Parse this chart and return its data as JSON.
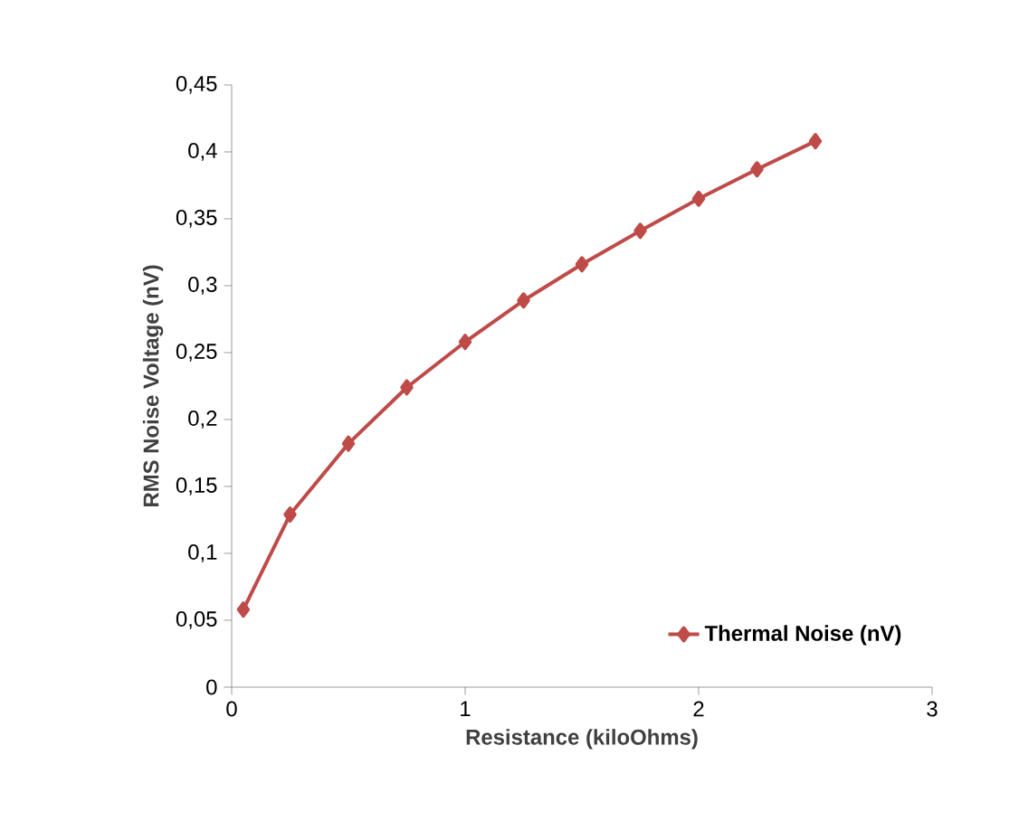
{
  "chart_data": {
    "type": "line",
    "xlabel": "Resistance (kiloOhms)",
    "ylabel": "RMS Noise Voltage (nV)",
    "x": [
      0.05,
      0.25,
      0.5,
      0.75,
      1,
      1.25,
      1.5,
      1.75,
      2,
      2.25,
      2.5
    ],
    "series": [
      {
        "name": "Thermal Noise (nV)",
        "color": "#be4b48",
        "values": [
          0.058,
          0.129,
          0.182,
          0.224,
          0.258,
          0.289,
          0.316,
          0.341,
          0.365,
          0.387,
          0.408
        ]
      }
    ],
    "xlim": [
      0,
      3
    ],
    "xticks": [
      0,
      1,
      2,
      3
    ],
    "ylim": [
      0,
      0.45
    ],
    "yticks": [
      0,
      {
        "value": 0.05,
        "label": "0,05"
      },
      {
        "value": 0.1,
        "label": "0,1"
      },
      {
        "value": 0.15,
        "label": "0,15"
      },
      {
        "value": 0.2,
        "label": "0,2"
      },
      {
        "value": 0.25,
        "label": "0,25"
      },
      {
        "value": 0.3,
        "label": "0,3"
      },
      {
        "value": 0.35,
        "label": "0,35"
      },
      {
        "value": 0.4,
        "label": "0,4"
      },
      {
        "value": 0.45,
        "label": "0,45"
      }
    ],
    "grid": false,
    "legend": "bottom right",
    "marker": "diamond",
    "line_style": "solid"
  }
}
